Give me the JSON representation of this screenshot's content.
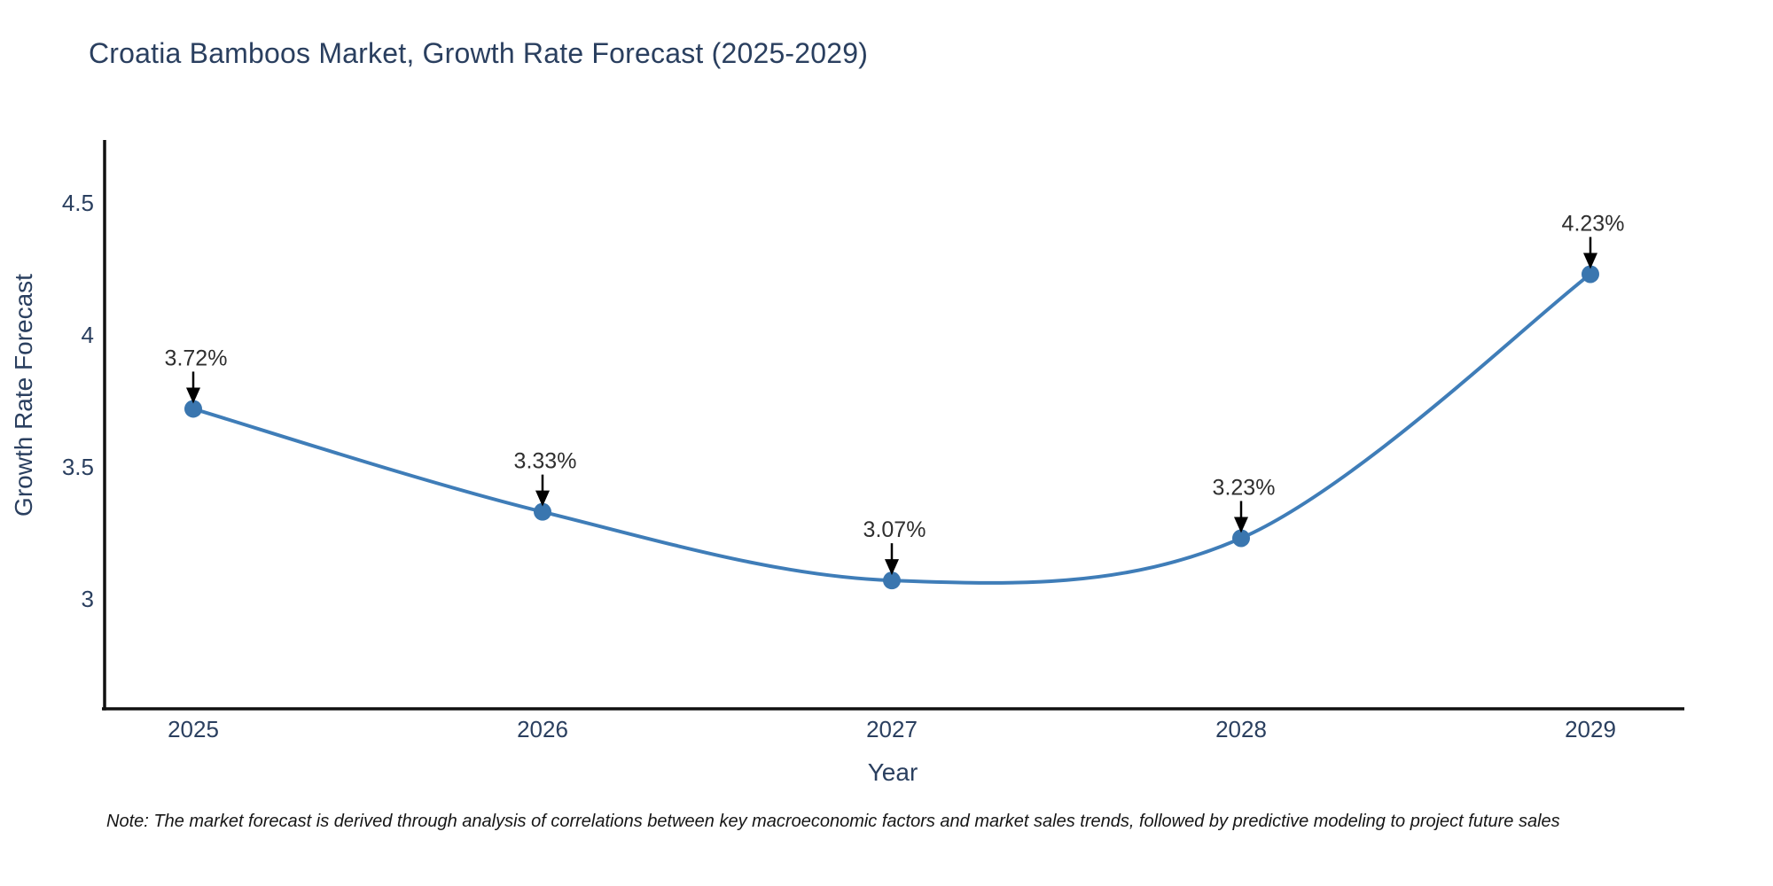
{
  "title": "Croatia Bamboos Market, Growth Rate Forecast (2025-2029)",
  "note": "Note: The market forecast is derived through analysis of correlations between key macroeconomic factors and market sales trends, followed by predictive modeling to project future sales",
  "chart_data": {
    "type": "line",
    "title": "Croatia Bamboos Market, Growth Rate Forecast (2025-2029)",
    "xlabel": "Year",
    "ylabel": "Growth Rate Forecast",
    "categories": [
      "2025",
      "2026",
      "2027",
      "2028",
      "2029"
    ],
    "values": [
      3.72,
      3.33,
      3.07,
      3.23,
      4.23
    ],
    "point_labels": [
      "3.72%",
      "3.33%",
      "3.07%",
      "3.23%",
      "4.23%"
    ],
    "yticks": [
      "3",
      "3.5",
      "4",
      "4.5"
    ],
    "ytick_values": [
      3,
      3.5,
      4,
      4.5
    ],
    "ylim": [
      2.58,
      4.74
    ],
    "xlim": [
      2024.7,
      2029.3
    ],
    "line_shape": "spline",
    "grid": false,
    "legend": false,
    "line_color": "#3f7db8",
    "marker_color": "#3a76af",
    "annotation_text_color": "#2f2f2f",
    "arrow_color": "#000000",
    "axis_color": "#111111",
    "tick_text_color": "#2a3f5f"
  }
}
